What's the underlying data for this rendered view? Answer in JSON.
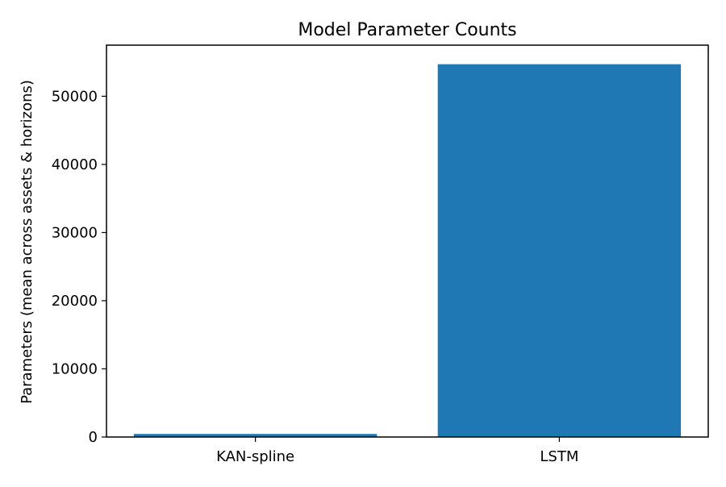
{
  "chart_data": {
    "type": "bar",
    "title": "Model Parameter Counts",
    "xlabel": "",
    "ylabel": "Parameters (mean across assets & horizons)",
    "categories": [
      "KAN-spline",
      "LSTM"
    ],
    "values": [
      450,
      54700
    ],
    "ylim": [
      0,
      57500
    ],
    "yticks": [
      0,
      10000,
      20000,
      30000,
      40000,
      50000
    ],
    "ytick_labels": [
      "0",
      "10000",
      "20000",
      "30000",
      "40000",
      "50000"
    ],
    "grid": false,
    "legend": "none",
    "colors": {
      "bar": "#1f77b4",
      "axis": "#000000",
      "background": "#ffffff"
    }
  }
}
